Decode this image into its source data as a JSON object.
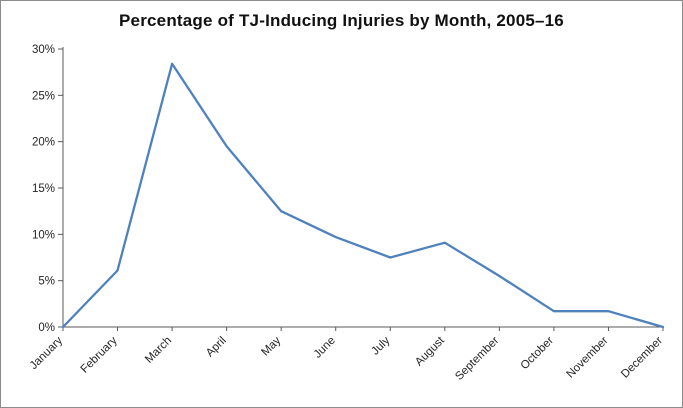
{
  "chart_data": {
    "type": "line",
    "title": "Percentage of TJ-Inducing Injuries by Month, 2005–16",
    "categories": [
      "January",
      "February",
      "March",
      "April",
      "May",
      "June",
      "July",
      "August",
      "September",
      "October",
      "November",
      "December"
    ],
    "values": [
      0,
      6.1,
      28.4,
      19.5,
      12.5,
      9.7,
      7.5,
      9.1,
      5.5,
      1.7,
      1.7,
      0
    ],
    "xlabel": "",
    "ylabel": "",
    "ylim": [
      0,
      30
    ],
    "ytick_step": 5,
    "ytick_labels": [
      "0%",
      "5%",
      "10%",
      "15%",
      "20%",
      "25%",
      "30%"
    ],
    "line_color": "#4F81BD",
    "axis_color": "#595959",
    "label_color": "#262626",
    "grid": false,
    "legend": false
  }
}
